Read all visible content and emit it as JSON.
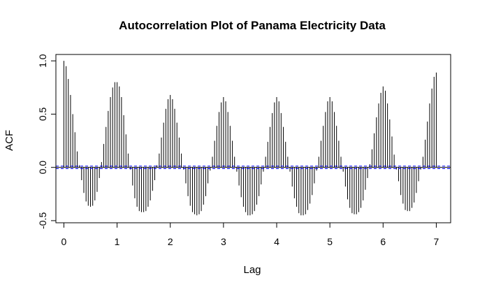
{
  "chart_data": {
    "type": "bar",
    "title": "Autocorrelation Plot of Panama Electricity Data",
    "xlabel": "Lag",
    "ylabel": "ACF",
    "xlim": [
      -0.15,
      7.27
    ],
    "ylim": [
      -0.52,
      1.06
    ],
    "x_ticks": [
      0,
      1,
      2,
      3,
      4,
      5,
      6,
      7
    ],
    "y_ticks": [
      -0.5,
      0.0,
      0.5,
      1.0
    ],
    "y_tick_labels": [
      "-0.5",
      "0.0",
      "0.5",
      "1.0"
    ],
    "ci_bound": 0.012,
    "lag_step": 0.04167,
    "x": [
      0,
      0.042,
      0.083,
      0.125,
      0.167,
      0.208,
      0.25,
      0.292,
      0.333,
      0.375,
      0.417,
      0.458,
      0.5,
      0.542,
      0.583,
      0.625,
      0.667,
      0.708,
      0.75,
      0.792,
      0.833,
      0.875,
      0.917,
      0.958,
      1,
      1.042,
      1.083,
      1.125,
      1.167,
      1.208,
      1.25,
      1.292,
      1.333,
      1.375,
      1.417,
      1.458,
      1.5,
      1.542,
      1.583,
      1.625,
      1.667,
      1.708,
      1.75,
      1.792,
      1.833,
      1.875,
      1.917,
      1.958,
      2,
      2.042,
      2.083,
      2.125,
      2.167,
      2.208,
      2.25,
      2.292,
      2.333,
      2.375,
      2.417,
      2.458,
      2.5,
      2.542,
      2.583,
      2.625,
      2.667,
      2.708,
      2.75,
      2.792,
      2.833,
      2.875,
      2.917,
      2.958,
      3,
      3.042,
      3.083,
      3.125,
      3.167,
      3.208,
      3.25,
      3.292,
      3.333,
      3.375,
      3.417,
      3.458,
      3.5,
      3.542,
      3.583,
      3.625,
      3.667,
      3.708,
      3.75,
      3.792,
      3.833,
      3.875,
      3.917,
      3.958,
      4,
      4.042,
      4.083,
      4.125,
      4.167,
      4.208,
      4.25,
      4.292,
      4.333,
      4.375,
      4.417,
      4.458,
      4.5,
      4.542,
      4.583,
      4.625,
      4.667,
      4.708,
      4.75,
      4.792,
      4.833,
      4.875,
      4.917,
      4.958,
      5,
      5.042,
      5.083,
      5.125,
      5.167,
      5.208,
      5.25,
      5.292,
      5.333,
      5.375,
      5.417,
      5.458,
      5.5,
      5.542,
      5.583,
      5.625,
      5.667,
      5.708,
      5.75,
      5.792,
      5.833,
      5.875,
      5.917,
      5.958,
      6,
      6.042,
      6.083,
      6.125,
      6.167,
      6.208,
      6.25,
      6.292,
      6.333,
      6.375,
      6.417,
      6.458,
      6.5,
      6.542,
      6.583,
      6.625,
      6.667,
      6.708,
      6.75,
      6.792,
      6.833,
      6.875,
      6.917,
      6.958,
      7
    ],
    "values": [
      1.0,
      0.95,
      0.83,
      0.68,
      0.5,
      0.33,
      0.15,
      0.02,
      -0.12,
      -0.24,
      -0.32,
      -0.36,
      -0.37,
      -0.36,
      -0.31,
      -0.23,
      -0.1,
      0.05,
      0.22,
      0.38,
      0.53,
      0.66,
      0.75,
      0.8,
      0.8,
      0.76,
      0.66,
      0.49,
      0.31,
      0.13,
      -0.02,
      -0.17,
      -0.29,
      -0.37,
      -0.41,
      -0.42,
      -0.42,
      -0.41,
      -0.37,
      -0.31,
      -0.22,
      -0.12,
      0.02,
      0.13,
      0.28,
      0.42,
      0.55,
      0.64,
      0.68,
      0.64,
      0.55,
      0.42,
      0.28,
      0.13,
      -0.02,
      -0.15,
      -0.27,
      -0.36,
      -0.42,
      -0.44,
      -0.45,
      -0.44,
      -0.41,
      -0.35,
      -0.27,
      -0.15,
      -0.03,
      0.1,
      0.25,
      0.39,
      0.52,
      0.61,
      0.66,
      0.62,
      0.52,
      0.39,
      0.25,
      0.1,
      -0.04,
      -0.17,
      -0.28,
      -0.37,
      -0.42,
      -0.45,
      -0.45,
      -0.44,
      -0.41,
      -0.35,
      -0.27,
      -0.16,
      -0.04,
      0.1,
      0.24,
      0.38,
      0.51,
      0.61,
      0.66,
      0.62,
      0.51,
      0.38,
      0.24,
      0.1,
      -0.04,
      -0.18,
      -0.29,
      -0.37,
      -0.43,
      -0.45,
      -0.45,
      -0.44,
      -0.4,
      -0.34,
      -0.26,
      -0.15,
      -0.03,
      0.1,
      0.25,
      0.39,
      0.52,
      0.62,
      0.66,
      0.62,
      0.52,
      0.39,
      0.25,
      0.1,
      -0.04,
      -0.18,
      -0.3,
      -0.38,
      -0.43,
      -0.44,
      -0.44,
      -0.42,
      -0.38,
      -0.31,
      -0.21,
      -0.1,
      0.03,
      0.17,
      0.32,
      0.47,
      0.6,
      0.7,
      0.76,
      0.72,
      0.6,
      0.45,
      0.29,
      0.12,
      -0.02,
      -0.13,
      -0.26,
      -0.34,
      -0.4,
      -0.41,
      -0.41,
      -0.38,
      -0.33,
      -0.24,
      -0.13,
      -0.02,
      0.1,
      0.26,
      0.43,
      0.6,
      0.74,
      0.85,
      0.89
    ],
    "grid": false,
    "legend": "none",
    "colors": {
      "bars": "#000000",
      "ci_line": "#0000ff",
      "zero_line": "#000000"
    }
  }
}
